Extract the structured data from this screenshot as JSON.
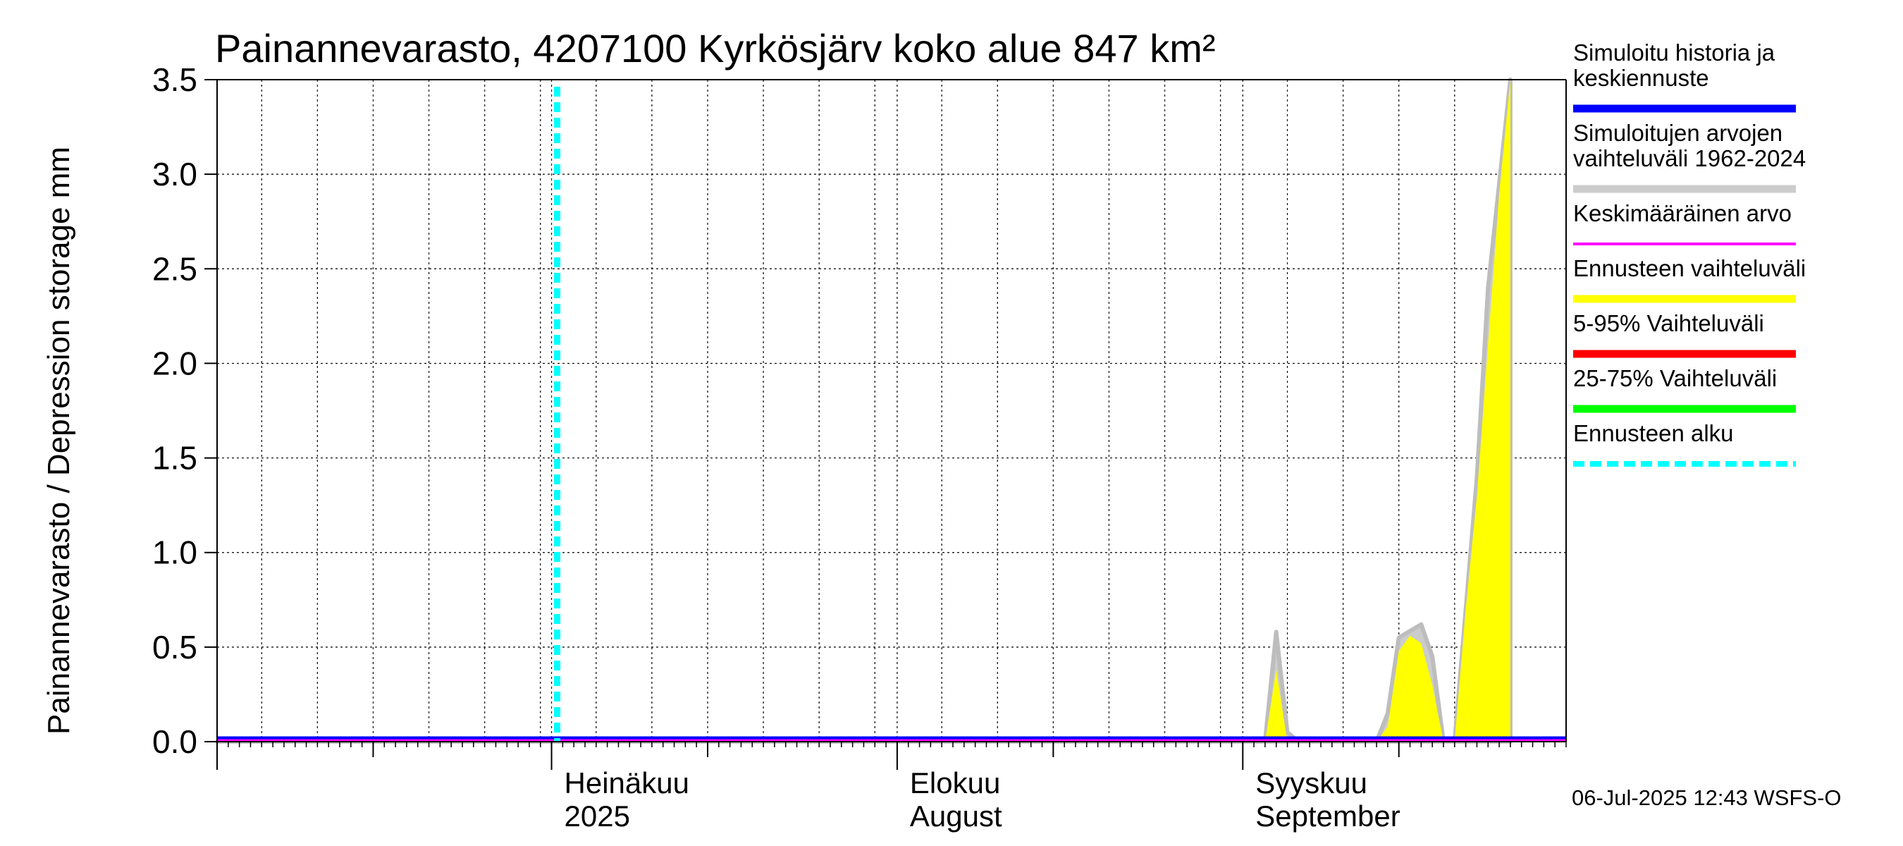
{
  "chart_data": {
    "type": "area",
    "title": "Painannevarasto, 4207100 Kyrkösjärv koko alue 847 km²",
    "ylabel": "Painannevarasto / Depression storage    mm",
    "ylim": [
      0,
      3.5
    ],
    "yticks": [
      "0.0",
      "0.5",
      "1.0",
      "1.5",
      "2.0",
      "2.5",
      "3.0",
      "3.5"
    ],
    "ytick_values": [
      0,
      0.5,
      1.0,
      1.5,
      2.0,
      2.5,
      3.0,
      3.5
    ],
    "xlim": [
      "2025-06-01",
      "2025-09-30"
    ],
    "grid": true,
    "month_labels": [
      {
        "date": "2025-07-01",
        "line1": "Heinäkuu",
        "line2": "2025"
      },
      {
        "date": "2025-08-01",
        "line1": "Elokuu",
        "line2": "August"
      },
      {
        "date": "2025-09-01",
        "line1": "Syyskuu",
        "line2": "September"
      }
    ],
    "forecast_start": "2025-07-01",
    "series": [
      {
        "name": "Simuloitujen arvojen vaihteluväli 1962-2024",
        "color": "#cccccc",
        "points": [
          [
            "2025-06-01",
            0
          ],
          [
            "2025-09-03",
            0
          ],
          [
            "2025-09-04",
            0.58
          ],
          [
            "2025-09-05",
            0.05
          ],
          [
            "2025-09-06",
            0
          ],
          [
            "2025-09-13",
            0
          ],
          [
            "2025-09-14",
            0.15
          ],
          [
            "2025-09-15",
            0.55
          ],
          [
            "2025-09-17",
            0.62
          ],
          [
            "2025-09-18",
            0.45
          ],
          [
            "2025-09-19",
            0
          ],
          [
            "2025-09-20",
            0
          ],
          [
            "2025-09-22",
            1.4
          ],
          [
            "2025-09-23",
            2.4
          ],
          [
            "2025-09-25",
            3.5
          ]
        ]
      },
      {
        "name": "Ennusteen vaihteluväli",
        "color": "#ffff00",
        "points": [
          [
            "2025-06-01",
            0
          ],
          [
            "2025-09-03",
            0
          ],
          [
            "2025-09-04",
            0.38
          ],
          [
            "2025-09-05",
            0
          ],
          [
            "2025-09-13",
            0
          ],
          [
            "2025-09-14",
            0.08
          ],
          [
            "2025-09-15",
            0.48
          ],
          [
            "2025-09-16",
            0.56
          ],
          [
            "2025-09-17",
            0.52
          ],
          [
            "2025-09-18",
            0.3
          ],
          [
            "2025-09-19",
            0
          ],
          [
            "2025-09-20",
            0
          ],
          [
            "2025-09-21",
            0.7
          ],
          [
            "2025-09-22",
            1.3
          ],
          [
            "2025-09-23",
            2.1
          ],
          [
            "2025-09-24",
            2.9
          ],
          [
            "2025-09-25",
            3.5
          ]
        ]
      }
    ],
    "lines": [
      {
        "name": "Simuloitu historia ja keskiennuste",
        "color": "#0000ff",
        "value": 0
      },
      {
        "name": "Keskimääräinen arvo",
        "color": "#ff00ff",
        "value": 0
      }
    ]
  },
  "legend": [
    {
      "label_lines": [
        "Simuloitu historia ja",
        "keskiennuste"
      ],
      "color": "#0000ff",
      "style": "solid"
    },
    {
      "label_lines": [
        "Simuloitujen arvojen",
        "vaihteluväli 1962-2024"
      ],
      "color": "#cccccc",
      "style": "solid"
    },
    {
      "label_lines": [
        "Keskimääräinen arvo"
      ],
      "color": "#ff00ff",
      "style": "thin"
    },
    {
      "label_lines": [
        "Ennusteen vaihteluväli"
      ],
      "color": "#ffff00",
      "style": "solid"
    },
    {
      "label_lines": [
        "5-95% Vaihteluväli"
      ],
      "color": "#ff0000",
      "style": "solid"
    },
    {
      "label_lines": [
        "25-75% Vaihteluväli"
      ],
      "color": "#00ff00",
      "style": "solid"
    },
    {
      "label_lines": [
        "Ennusteen alku"
      ],
      "color": "#00ffff",
      "style": "dashed"
    }
  ],
  "footer": "06-Jul-2025 12:43 WSFS-O"
}
